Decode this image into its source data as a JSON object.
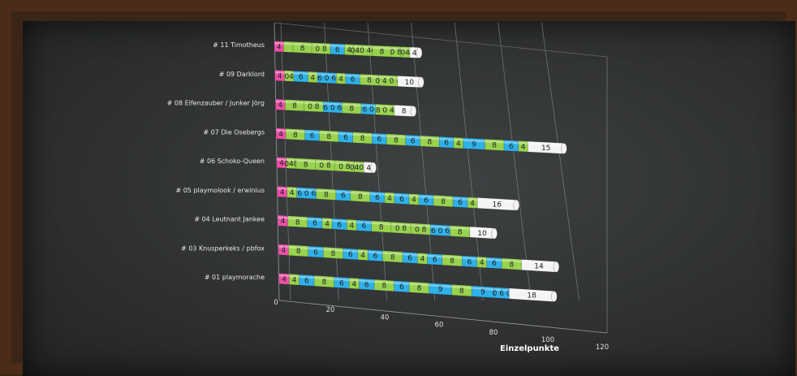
{
  "chart_data": {
    "type": "bar",
    "orientation": "horizontal-stacked",
    "xlabel": "Einzelpunkte",
    "xlim": [
      0,
      120
    ],
    "xticks": [
      0,
      20,
      40,
      60,
      80,
      100,
      120
    ],
    "grid": true,
    "colors": {
      "magenta": "#ee4fa9",
      "green": "#98d24e",
      "blue": "#2fb0e8",
      "white": "#f4f4f4",
      "border": "#5a2f16"
    },
    "rows": [
      {
        "label": "# 11 Timotheus",
        "segments": [
          {
            "v": 4,
            "c": "magenta"
          },
          {
            "v": 4,
            "c": "green",
            "lbl": ""
          },
          {
            "v": 8,
            "c": "green"
          },
          {
            "v": 8,
            "c": "green",
            "lbl": "0 8"
          },
          {
            "v": 6,
            "c": "blue"
          },
          {
            "v": 4,
            "c": "green",
            "lbl": "4"
          },
          {
            "v": 8,
            "c": "green",
            "lbl": "040 40"
          },
          {
            "v": 8,
            "c": "green",
            "lbl": "8"
          },
          {
            "v": 4,
            "c": "green",
            "lbl": "0 8"
          },
          {
            "v": 4,
            "c": "green",
            "lbl": "04"
          },
          {
            "v": 4,
            "c": "white"
          }
        ]
      },
      {
        "label": "# 09 Darklord",
        "segments": [
          {
            "v": 4,
            "c": "magenta",
            "lbl": "4"
          },
          {
            "v": 4,
            "c": "green",
            "lbl": "04"
          },
          {
            "v": 6,
            "c": "blue",
            "lbl": "6"
          },
          {
            "v": 4,
            "c": "green",
            "lbl": "4"
          },
          {
            "v": 8,
            "c": "blue",
            "lbl": "6 0 6"
          },
          {
            "v": 4,
            "c": "green",
            "lbl": "4"
          },
          {
            "v": 6,
            "c": "blue",
            "lbl": "6"
          },
          {
            "v": 8,
            "c": "green",
            "lbl": "8"
          },
          {
            "v": 8,
            "c": "green",
            "lbl": "0 4 0 4"
          },
          {
            "v": 10,
            "c": "white",
            "lbl": "10"
          }
        ]
      },
      {
        "label": "# 08 Elfenzauber / Junker Jörg",
        "segments": [
          {
            "v": 4,
            "c": "magenta",
            "lbl": "4"
          },
          {
            "v": 8,
            "c": "green",
            "lbl": "8"
          },
          {
            "v": 8,
            "c": "green",
            "lbl": "0 8"
          },
          {
            "v": 8,
            "c": "blue",
            "lbl": "6 0 6"
          },
          {
            "v": 8,
            "c": "green",
            "lbl": "8"
          },
          {
            "v": 6,
            "c": "blue",
            "lbl": "6 0"
          },
          {
            "v": 8,
            "c": "green",
            "lbl": "8 0 4"
          },
          {
            "v": 8,
            "c": "white",
            "lbl": "8"
          }
        ]
      },
      {
        "label": "# 07 Die Osebergs",
        "segments": [
          {
            "v": 4,
            "c": "magenta",
            "lbl": "4"
          },
          {
            "v": 8,
            "c": "green",
            "lbl": "8"
          },
          {
            "v": 6,
            "c": "blue",
            "lbl": "6"
          },
          {
            "v": 8,
            "c": "green",
            "lbl": "8"
          },
          {
            "v": 6,
            "c": "blue",
            "lbl": "6"
          },
          {
            "v": 8,
            "c": "green",
            "lbl": "8"
          },
          {
            "v": 6,
            "c": "blue",
            "lbl": "6"
          },
          {
            "v": 8,
            "c": "green",
            "lbl": "8"
          },
          {
            "v": 6,
            "c": "blue",
            "lbl": "6"
          },
          {
            "v": 8,
            "c": "green",
            "lbl": "8"
          },
          {
            "v": 6,
            "c": "blue",
            "lbl": "6"
          },
          {
            "v": 4,
            "c": "green",
            "lbl": "4"
          },
          {
            "v": 9,
            "c": "blue",
            "lbl": "9"
          },
          {
            "v": 8,
            "c": "green",
            "lbl": "8"
          },
          {
            "v": 6,
            "c": "blue",
            "lbl": "6"
          },
          {
            "v": 4,
            "c": "green",
            "lbl": "4"
          },
          {
            "v": 15,
            "c": "white",
            "lbl": "15"
          }
        ]
      },
      {
        "label": "# 06 Schoko-Queen",
        "segments": [
          {
            "v": 4,
            "c": "magenta",
            "lbl": "4"
          },
          {
            "v": 4,
            "c": "green",
            "lbl": "040"
          },
          {
            "v": 8,
            "c": "green",
            "lbl": "8"
          },
          {
            "v": 8,
            "c": "green",
            "lbl": "0 8"
          },
          {
            "v": 8,
            "c": "green",
            "lbl": "0 8"
          },
          {
            "v": 4,
            "c": "green",
            "lbl": "0404"
          },
          {
            "v": 4,
            "c": "white",
            "lbl": "4"
          }
        ]
      },
      {
        "label": "# 05 playmolook / erwinius",
        "segments": [
          {
            "v": 4,
            "c": "magenta",
            "lbl": "4"
          },
          {
            "v": 4,
            "c": "green",
            "lbl": "4"
          },
          {
            "v": 8,
            "c": "blue",
            "lbl": "6 0 6"
          },
          {
            "v": 8,
            "c": "green",
            "lbl": "8"
          },
          {
            "v": 6,
            "c": "blue",
            "lbl": "6"
          },
          {
            "v": 8,
            "c": "green",
            "lbl": "8"
          },
          {
            "v": 6,
            "c": "blue",
            "lbl": "6"
          },
          {
            "v": 4,
            "c": "green",
            "lbl": "4"
          },
          {
            "v": 6,
            "c": "blue",
            "lbl": "6"
          },
          {
            "v": 4,
            "c": "green",
            "lbl": "4"
          },
          {
            "v": 6,
            "c": "blue",
            "lbl": "6"
          },
          {
            "v": 8,
            "c": "green",
            "lbl": "8"
          },
          {
            "v": 6,
            "c": "blue",
            "lbl": "6"
          },
          {
            "v": 4,
            "c": "green",
            "lbl": "4"
          },
          {
            "v": 16,
            "c": "white",
            "lbl": "16"
          }
        ]
      },
      {
        "label": "# 04 Leutnant Jankee",
        "segments": [
          {
            "v": 4,
            "c": "magenta",
            "lbl": "4"
          },
          {
            "v": 8,
            "c": "green",
            "lbl": "8"
          },
          {
            "v": 6,
            "c": "blue",
            "lbl": "6"
          },
          {
            "v": 4,
            "c": "green",
            "lbl": "4"
          },
          {
            "v": 6,
            "c": "blue",
            "lbl": "6"
          },
          {
            "v": 4,
            "c": "green",
            "lbl": "4"
          },
          {
            "v": 6,
            "c": "blue",
            "lbl": "6"
          },
          {
            "v": 8,
            "c": "green",
            "lbl": "8"
          },
          {
            "v": 8,
            "c": "green",
            "lbl": "0 8"
          },
          {
            "v": 8,
            "c": "green",
            "lbl": "0 8"
          },
          {
            "v": 8,
            "c": "blue",
            "lbl": "6 0 6"
          },
          {
            "v": 8,
            "c": "green",
            "lbl": "8"
          },
          {
            "v": 10,
            "c": "white",
            "lbl": "10"
          }
        ]
      },
      {
        "label": "# 03 Knusperkeks / pbfox",
        "segments": [
          {
            "v": 4,
            "c": "magenta",
            "lbl": "4"
          },
          {
            "v": 8,
            "c": "green",
            "lbl": "8"
          },
          {
            "v": 6,
            "c": "blue",
            "lbl": "6"
          },
          {
            "v": 8,
            "c": "green",
            "lbl": "8"
          },
          {
            "v": 6,
            "c": "blue",
            "lbl": "6"
          },
          {
            "v": 4,
            "c": "green",
            "lbl": "4"
          },
          {
            "v": 6,
            "c": "blue",
            "lbl": "6"
          },
          {
            "v": 8,
            "c": "green",
            "lbl": "8"
          },
          {
            "v": 6,
            "c": "blue",
            "lbl": "6"
          },
          {
            "v": 4,
            "c": "green",
            "lbl": "4"
          },
          {
            "v": 6,
            "c": "blue",
            "lbl": "6"
          },
          {
            "v": 8,
            "c": "green",
            "lbl": "8"
          },
          {
            "v": 6,
            "c": "blue",
            "lbl": "6"
          },
          {
            "v": 4,
            "c": "green",
            "lbl": "4"
          },
          {
            "v": 6,
            "c": "blue",
            "lbl": "6"
          },
          {
            "v": 8,
            "c": "green",
            "lbl": "8"
          },
          {
            "v": 14,
            "c": "white",
            "lbl": "14"
          }
        ]
      },
      {
        "label": "# 01 playmorache",
        "segments": [
          {
            "v": 4,
            "c": "magenta",
            "lbl": "4"
          },
          {
            "v": 4,
            "c": "green",
            "lbl": "4"
          },
          {
            "v": 6,
            "c": "blue",
            "lbl": "6"
          },
          {
            "v": 8,
            "c": "green",
            "lbl": "8"
          },
          {
            "v": 6,
            "c": "blue",
            "lbl": "6"
          },
          {
            "v": 4,
            "c": "green",
            "lbl": "4"
          },
          {
            "v": 6,
            "c": "blue",
            "lbl": "6"
          },
          {
            "v": 8,
            "c": "green",
            "lbl": "8"
          },
          {
            "v": 6,
            "c": "blue",
            "lbl": "6"
          },
          {
            "v": 8,
            "c": "green",
            "lbl": "8"
          },
          {
            "v": 9,
            "c": "blue",
            "lbl": "9"
          },
          {
            "v": 8,
            "c": "green",
            "lbl": "8"
          },
          {
            "v": 9,
            "c": "blue",
            "lbl": "9"
          },
          {
            "v": 6,
            "c": "blue",
            "lbl": "0 6 0"
          },
          {
            "v": 18,
            "c": "white",
            "lbl": "18"
          }
        ]
      }
    ]
  }
}
